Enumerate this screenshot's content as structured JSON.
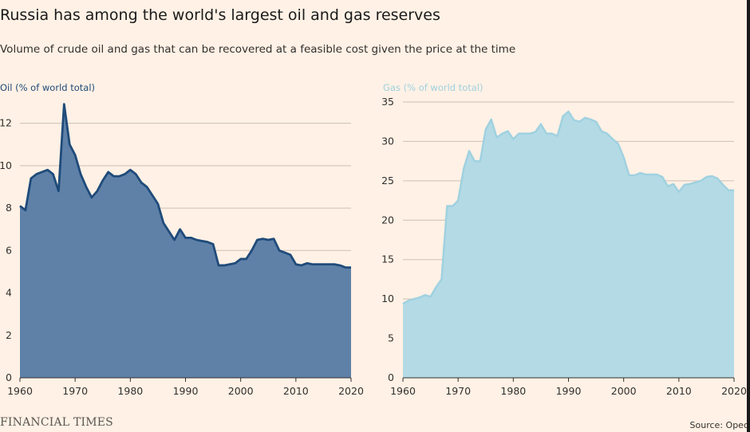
{
  "header": {
    "title": "Russia has among the world's largest oil and gas reserves",
    "subtitle": "Volume of crude oil and gas that can be recovered at a feasible cost given the price at the time"
  },
  "footer": {
    "logo_text": "FINANCIAL TIMES",
    "source": "Source: Opec"
  },
  "colors": {
    "background": "#fff1e5",
    "oil_fill": "#5f81a8",
    "oil_line": "#1f4b7a",
    "gas_fill": "#b3dae5",
    "gas_line": "#9fd1e0",
    "grid": "#cdbfb3"
  },
  "chart_data": [
    {
      "type": "area",
      "title": "Oil (% of world total)",
      "xlim": [
        1960,
        2020
      ],
      "ylim": [
        0,
        13
      ],
      "yticks": [
        0,
        2,
        4,
        6,
        8,
        10,
        12
      ],
      "xticks": [
        1960,
        1970,
        1980,
        1990,
        2000,
        2010,
        2020
      ],
      "grid": true,
      "series": [
        {
          "x": [
            1960,
            1961,
            1962,
            1963,
            1964,
            1965,
            1966,
            1967,
            1968,
            1969,
            1970,
            1971,
            1972,
            1973,
            1974,
            1975,
            1976,
            1977,
            1978,
            1979,
            1980,
            1981,
            1982,
            1983,
            1984,
            1985,
            1986,
            1987,
            1988,
            1989,
            1990,
            1991,
            1992,
            1993,
            1994,
            1995,
            1996,
            1997,
            1998,
            1999,
            2000,
            2001,
            2002,
            2003,
            2004,
            2005,
            2006,
            2007,
            2008,
            2009,
            2010,
            2011,
            2012,
            2013,
            2014,
            2015,
            2016,
            2017,
            2018,
            2019,
            2020
          ],
          "values": [
            8.1,
            7.9,
            9.4,
            9.6,
            9.7,
            9.8,
            9.6,
            8.8,
            12.9,
            11.0,
            10.5,
            9.6,
            9.0,
            8.5,
            8.8,
            9.3,
            9.7,
            9.5,
            9.5,
            9.6,
            9.8,
            9.6,
            9.2,
            9.0,
            8.6,
            8.2,
            7.3,
            6.9,
            6.5,
            7.0,
            6.6,
            6.6,
            6.5,
            6.45,
            6.4,
            6.3,
            5.3,
            5.3,
            5.35,
            5.4,
            5.6,
            5.6,
            6.0,
            6.5,
            6.55,
            6.5,
            6.55,
            6.0,
            5.9,
            5.8,
            5.35,
            5.3,
            5.4,
            5.35,
            5.35,
            5.35,
            5.35,
            5.35,
            5.3,
            5.2,
            5.2
          ]
        }
      ]
    },
    {
      "type": "area",
      "title": "Gas (% of world total)",
      "xlim": [
        1960,
        2020
      ],
      "ylim": [
        0,
        35
      ],
      "yticks": [
        0,
        5,
        10,
        15,
        20,
        25,
        30,
        35
      ],
      "xticks": [
        1960,
        1970,
        1980,
        1990,
        2000,
        2010,
        2020
      ],
      "grid": true,
      "series": [
        {
          "x": [
            1960,
            1961,
            1962,
            1963,
            1964,
            1965,
            1966,
            1967,
            1968,
            1969,
            1970,
            1971,
            1972,
            1973,
            1974,
            1975,
            1976,
            1977,
            1978,
            1979,
            1980,
            1981,
            1982,
            1983,
            1984,
            1985,
            1986,
            1987,
            1988,
            1989,
            1990,
            1991,
            1992,
            1993,
            1994,
            1995,
            1996,
            1997,
            1998,
            1999,
            2000,
            2001,
            2002,
            2003,
            2004,
            2005,
            2006,
            2007,
            2008,
            2009,
            2010,
            2011,
            2012,
            2013,
            2014,
            2015,
            2016,
            2017,
            2018,
            2019,
            2020
          ],
          "values": [
            9.4,
            9.8,
            10.0,
            10.2,
            10.5,
            10.3,
            11.5,
            12.5,
            21.8,
            21.8,
            22.5,
            26.5,
            28.8,
            27.5,
            27.5,
            31.5,
            32.8,
            30.5,
            31.0,
            31.3,
            30.3,
            31.0,
            31.0,
            31.0,
            31.2,
            32.2,
            31.0,
            31.0,
            30.7,
            33.2,
            33.8,
            32.7,
            32.5,
            33.0,
            32.8,
            32.5,
            31.3,
            31.0,
            30.3,
            29.7,
            28.0,
            25.7,
            25.7,
            26.0,
            25.8,
            25.8,
            25.8,
            25.5,
            24.3,
            24.6,
            23.6,
            24.5,
            24.6,
            24.8,
            25.0,
            25.5,
            25.6,
            25.3,
            24.5,
            23.8,
            23.8
          ]
        }
      ]
    }
  ]
}
